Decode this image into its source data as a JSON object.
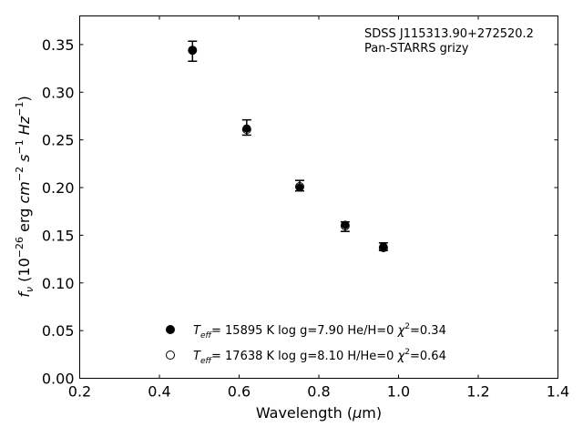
{
  "chart_data": {
    "type": "scatter",
    "title": "",
    "xlabel": "Wavelength (μm)",
    "ylabel": "fν (10⁻²⁶ erg cm⁻² s⁻¹ Hz⁻¹)",
    "xlim": [
      0.2,
      1.4
    ],
    "ylim": [
      0.0,
      0.38
    ],
    "xticks": [
      "0.2",
      "0.4",
      "0.6",
      "0.8",
      "1.0",
      "1.2",
      "1.4"
    ],
    "yticks": [
      "0.00",
      "0.05",
      "0.10",
      "0.15",
      "0.20",
      "0.25",
      "0.30",
      "0.35"
    ],
    "annotation": [
      "SDSS J115313.90+272520.2",
      "Pan-STARRS grizy"
    ],
    "grid": false,
    "legend_position": "lower-center",
    "series": [
      {
        "name": "Teff= 15895 K  log g=7.90  He/H=0  χ²=0.34",
        "marker": "filled-circle",
        "color": "#000000",
        "x": [
          0.483,
          0.619,
          0.752,
          0.866,
          0.962
        ],
        "y": [
          0.344,
          0.262,
          0.2,
          0.161,
          0.138
        ]
      },
      {
        "name": "Teff= 17638 K  log g=8.10  H/He=0  χ²=0.64",
        "marker": "open-circle",
        "color": "#000000",
        "x": [
          0.483,
          0.619,
          0.752,
          0.866,
          0.962
        ],
        "y": [
          0.344,
          0.261,
          0.201,
          0.16,
          0.137
        ]
      }
    ],
    "observed": {
      "marker": "errorbar",
      "x": [
        0.483,
        0.619,
        0.752,
        0.866,
        0.962
      ],
      "y": [
        0.343,
        0.263,
        0.202,
        0.159,
        0.138
      ],
      "yerr": [
        0.0105,
        0.008,
        0.0055,
        0.005,
        0.004
      ]
    }
  }
}
